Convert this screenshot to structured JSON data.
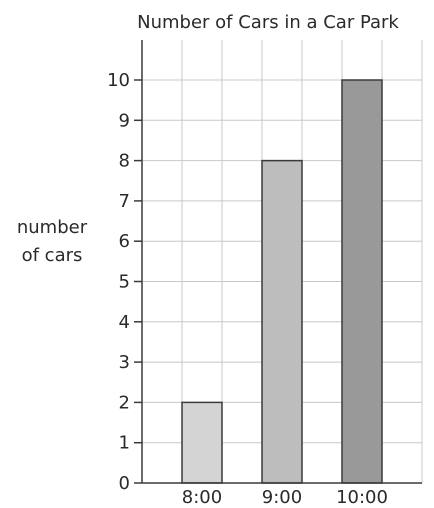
{
  "chart_data": {
    "type": "bar",
    "title": "Number of Cars in a Car Park",
    "ylabel_lines": [
      "number",
      "of cars"
    ],
    "xlabel": "",
    "categories": [
      "8:00",
      "9:00",
      "10:00"
    ],
    "values": [
      2,
      8,
      10
    ],
    "bar_colors": [
      "#d4d4d4",
      "#bdbdbd",
      "#999999"
    ],
    "ylim": [
      0,
      11
    ],
    "yticks": [
      0,
      1,
      2,
      3,
      4,
      5,
      6,
      7,
      8,
      9,
      10
    ],
    "grid": true,
    "legend": "none"
  }
}
